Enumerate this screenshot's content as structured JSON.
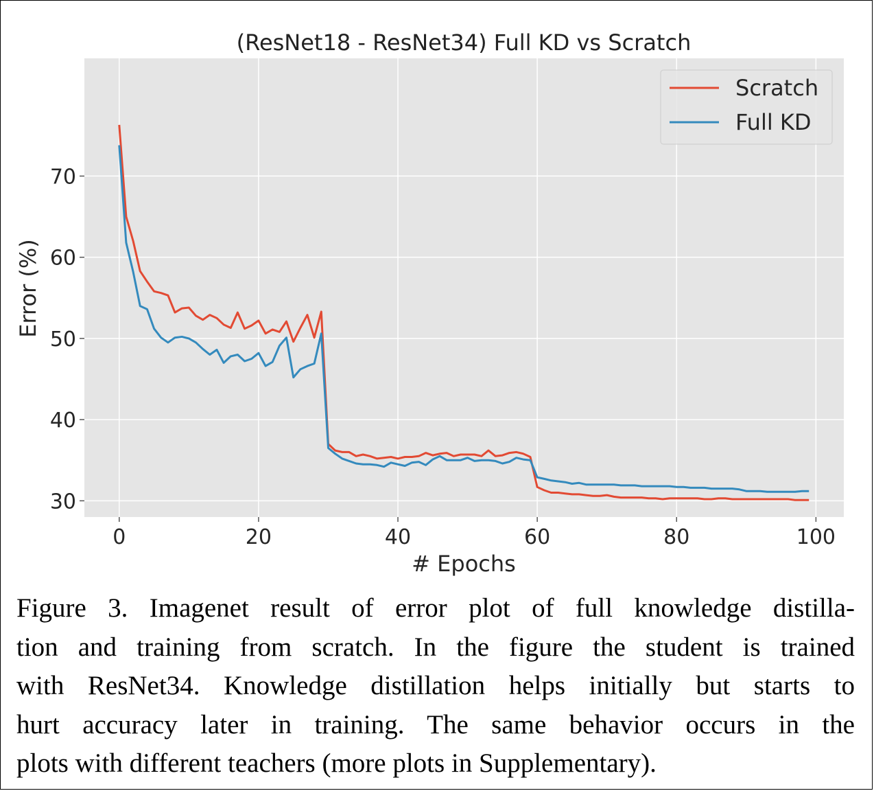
{
  "colors": {
    "plot_background": "#e5e5e5",
    "grid": "#ffffff",
    "scratch": "#e24a33",
    "full_kd": "#348abd",
    "legend_background": "#e5e5e5",
    "legend_border": "#cccccc"
  },
  "chart_data": {
    "type": "line",
    "title": "(ResNet18 - ResNet34) Full KD vs Scratch",
    "xlabel": "# Epochs",
    "ylabel": "Error (%)",
    "xlim": [
      -5,
      104
    ],
    "ylim": [
      28,
      84.5
    ],
    "xticks": [
      0,
      20,
      40,
      60,
      80,
      100
    ],
    "yticks": [
      30,
      40,
      50,
      60,
      70
    ],
    "grid": true,
    "legend_position": "top-right",
    "x": [
      0,
      1,
      2,
      3,
      4,
      5,
      6,
      7,
      8,
      9,
      10,
      11,
      12,
      13,
      14,
      15,
      16,
      17,
      18,
      19,
      20,
      21,
      22,
      23,
      24,
      25,
      26,
      27,
      28,
      29,
      30,
      31,
      32,
      33,
      34,
      35,
      36,
      37,
      38,
      39,
      40,
      41,
      42,
      43,
      44,
      45,
      46,
      47,
      48,
      49,
      50,
      51,
      52,
      53,
      54,
      55,
      56,
      57,
      58,
      59,
      60,
      61,
      62,
      63,
      64,
      65,
      66,
      67,
      68,
      69,
      70,
      71,
      72,
      73,
      74,
      75,
      76,
      77,
      78,
      79,
      80,
      81,
      82,
      83,
      84,
      85,
      86,
      87,
      88,
      89,
      90,
      91,
      92,
      93,
      94,
      95,
      96,
      97,
      98,
      99
    ],
    "series": [
      {
        "name": "Scratch",
        "values": [
          76.3,
          65.0,
          62.0,
          58.3,
          57.0,
          55.8,
          55.6,
          55.3,
          53.2,
          53.7,
          53.8,
          52.8,
          52.3,
          52.9,
          52.5,
          51.7,
          51.3,
          53.2,
          51.2,
          51.6,
          52.2,
          50.6,
          51.1,
          50.8,
          52.1,
          49.6,
          51.3,
          52.9,
          50.1,
          53.3,
          37.0,
          36.2,
          36.0,
          36.0,
          35.5,
          35.7,
          35.5,
          35.2,
          35.3,
          35.4,
          35.2,
          35.4,
          35.4,
          35.5,
          35.9,
          35.6,
          35.8,
          35.9,
          35.5,
          35.7,
          35.7,
          35.7,
          35.5,
          36.2,
          35.5,
          35.6,
          35.9,
          36.0,
          35.8,
          35.4,
          31.7,
          31.3,
          31.0,
          31.0,
          30.9,
          30.8,
          30.8,
          30.7,
          30.6,
          30.6,
          30.7,
          30.5,
          30.4,
          30.4,
          30.4,
          30.4,
          30.3,
          30.3,
          30.2,
          30.3,
          30.3,
          30.3,
          30.3,
          30.3,
          30.2,
          30.2,
          30.3,
          30.3,
          30.2,
          30.2,
          30.2,
          30.2,
          30.2,
          30.2,
          30.2,
          30.2,
          30.2,
          30.1,
          30.1,
          30.1
        ]
      },
      {
        "name": "Full KD",
        "values": [
          73.8,
          61.8,
          58.2,
          54.0,
          53.6,
          51.2,
          50.1,
          49.5,
          50.1,
          50.2,
          50.0,
          49.5,
          48.7,
          48.0,
          48.6,
          47.0,
          47.8,
          48.0,
          47.2,
          47.5,
          48.2,
          46.6,
          47.1,
          49.1,
          50.1,
          45.2,
          46.2,
          46.6,
          46.9,
          50.6,
          36.5,
          35.8,
          35.2,
          34.9,
          34.6,
          34.5,
          34.5,
          34.4,
          34.2,
          34.7,
          34.5,
          34.3,
          34.7,
          34.8,
          34.4,
          35.1,
          35.5,
          35.0,
          35.0,
          35.0,
          35.3,
          34.9,
          35.0,
          35.0,
          34.9,
          34.6,
          34.8,
          35.3,
          35.1,
          35.0,
          32.9,
          32.7,
          32.5,
          32.4,
          32.3,
          32.1,
          32.2,
          32.0,
          32.0,
          32.0,
          32.0,
          32.0,
          31.9,
          31.9,
          31.9,
          31.8,
          31.8,
          31.8,
          31.8,
          31.8,
          31.7,
          31.7,
          31.6,
          31.6,
          31.6,
          31.5,
          31.5,
          31.5,
          31.5,
          31.4,
          31.2,
          31.2,
          31.2,
          31.1,
          31.1,
          31.1,
          31.1,
          31.1,
          31.2,
          31.2
        ]
      }
    ]
  },
  "caption": {
    "lines": [
      "Figure 3. Imagenet result of error plot of full knowledge distilla-",
      "tion and training from scratch.  In the figure the student is trained",
      "with ResNet34. Knowledge distillation helps initially but starts to",
      "hurt accuracy later in training.  The same behavior occurs in the",
      "plots with different teachers (more plots in Supplementary)."
    ]
  }
}
